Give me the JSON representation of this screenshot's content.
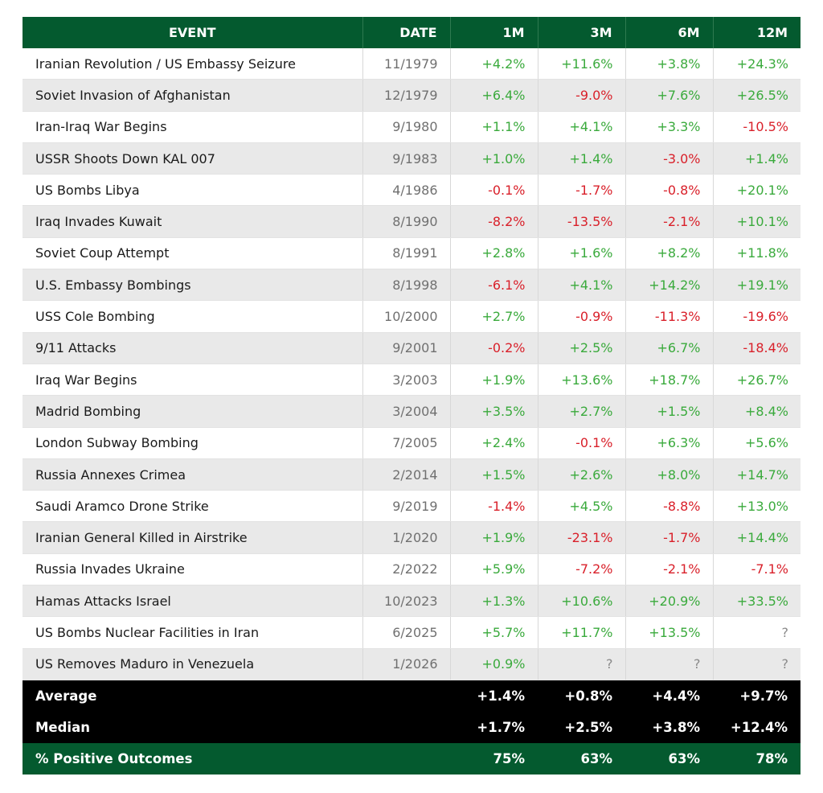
{
  "chart_data": {
    "type": "table",
    "title": "",
    "columns": [
      "EVENT",
      "DATE",
      "1M",
      "3M",
      "6M",
      "12M"
    ],
    "rows": [
      {
        "event": "Iranian Revolution / US Embassy Seizure",
        "date": "11/1979",
        "m1": "+4.2%",
        "m3": "+11.6%",
        "m6": "+3.8%",
        "m12": "+24.3%"
      },
      {
        "event": "Soviet Invasion of Afghanistan",
        "date": "12/1979",
        "m1": "+6.4%",
        "m3": "-9.0%",
        "m6": "+7.6%",
        "m12": "+26.5%"
      },
      {
        "event": "Iran-Iraq War Begins",
        "date": "9/1980",
        "m1": "+1.1%",
        "m3": "+4.1%",
        "m6": "+3.3%",
        "m12": "-10.5%"
      },
      {
        "event": "USSR Shoots Down KAL 007",
        "date": "9/1983",
        "m1": "+1.0%",
        "m3": "+1.4%",
        "m6": "-3.0%",
        "m12": "+1.4%"
      },
      {
        "event": "US Bombs Libya",
        "date": "4/1986",
        "m1": "-0.1%",
        "m3": "-1.7%",
        "m6": "-0.8%",
        "m12": "+20.1%"
      },
      {
        "event": "Iraq Invades Kuwait",
        "date": "8/1990",
        "m1": "-8.2%",
        "m3": "-13.5%",
        "m6": "-2.1%",
        "m12": "+10.1%"
      },
      {
        "event": "Soviet Coup Attempt",
        "date": "8/1991",
        "m1": "+2.8%",
        "m3": "+1.6%",
        "m6": "+8.2%",
        "m12": "+11.8%"
      },
      {
        "event": "U.S. Embassy Bombings",
        "date": "8/1998",
        "m1": "-6.1%",
        "m3": "+4.1%",
        "m6": "+14.2%",
        "m12": "+19.1%"
      },
      {
        "event": "USS Cole Bombing",
        "date": "10/2000",
        "m1": "+2.7%",
        "m3": "-0.9%",
        "m6": "-11.3%",
        "m12": "-19.6%"
      },
      {
        "event": "9/11 Attacks",
        "date": "9/2001",
        "m1": "-0.2%",
        "m3": "+2.5%",
        "m6": "+6.7%",
        "m12": "-18.4%"
      },
      {
        "event": "Iraq War Begins",
        "date": "3/2003",
        "m1": "+1.9%",
        "m3": "+13.6%",
        "m6": "+18.7%",
        "m12": "+26.7%"
      },
      {
        "event": "Madrid Bombing",
        "date": "3/2004",
        "m1": "+3.5%",
        "m3": "+2.7%",
        "m6": "+1.5%",
        "m12": "+8.4%"
      },
      {
        "event": "London Subway Bombing",
        "date": "7/2005",
        "m1": "+2.4%",
        "m3": "-0.1%",
        "m6": "+6.3%",
        "m12": "+5.6%"
      },
      {
        "event": "Russia Annexes Crimea",
        "date": "2/2014",
        "m1": "+1.5%",
        "m3": "+2.6%",
        "m6": "+8.0%",
        "m12": "+14.7%"
      },
      {
        "event": "Saudi Aramco Drone Strike",
        "date": "9/2019",
        "m1": "-1.4%",
        "m3": "+4.5%",
        "m6": "-8.8%",
        "m12": "+13.0%"
      },
      {
        "event": "Iranian General Killed in Airstrike",
        "date": "1/2020",
        "m1": "+1.9%",
        "m3": "-23.1%",
        "m6": "-1.7%",
        "m12": "+14.4%"
      },
      {
        "event": "Russia Invades Ukraine",
        "date": "2/2022",
        "m1": "+5.9%",
        "m3": "-7.2%",
        "m6": "-2.1%",
        "m12": "-7.1%"
      },
      {
        "event": "Hamas Attacks Israel",
        "date": "10/2023",
        "m1": "+1.3%",
        "m3": "+10.6%",
        "m6": "+20.9%",
        "m12": "+33.5%"
      },
      {
        "event": "US Bombs Nuclear Facilities in Iran",
        "date": "6/2025",
        "m1": "+5.7%",
        "m3": "+11.7%",
        "m6": "+13.5%",
        "m12": "?"
      },
      {
        "event": "US Removes Maduro in Venezuela",
        "date": "1/2026",
        "m1": "+0.9%",
        "m3": "?",
        "m6": "?",
        "m12": "?"
      }
    ],
    "summary": [
      {
        "label": "Average",
        "m1": "+1.4%",
        "m3": "+0.8%",
        "m6": "+4.4%",
        "m12": "+9.7%"
      },
      {
        "label": "Median",
        "m1": "+1.7%",
        "m3": "+2.5%",
        "m6": "+3.8%",
        "m12": "+12.4%"
      },
      {
        "label": "% Positive Outcomes",
        "m1": "75%",
        "m3": "63%",
        "m6": "63%",
        "m12": "78%"
      }
    ]
  },
  "colors": {
    "header_bg": "#045a2f",
    "positive": "#3aaa3c",
    "negative": "#d9202a",
    "unknown": "#8a8a8a",
    "summary_bg": "#000000",
    "stripe_bg": "#e9e9e9"
  }
}
